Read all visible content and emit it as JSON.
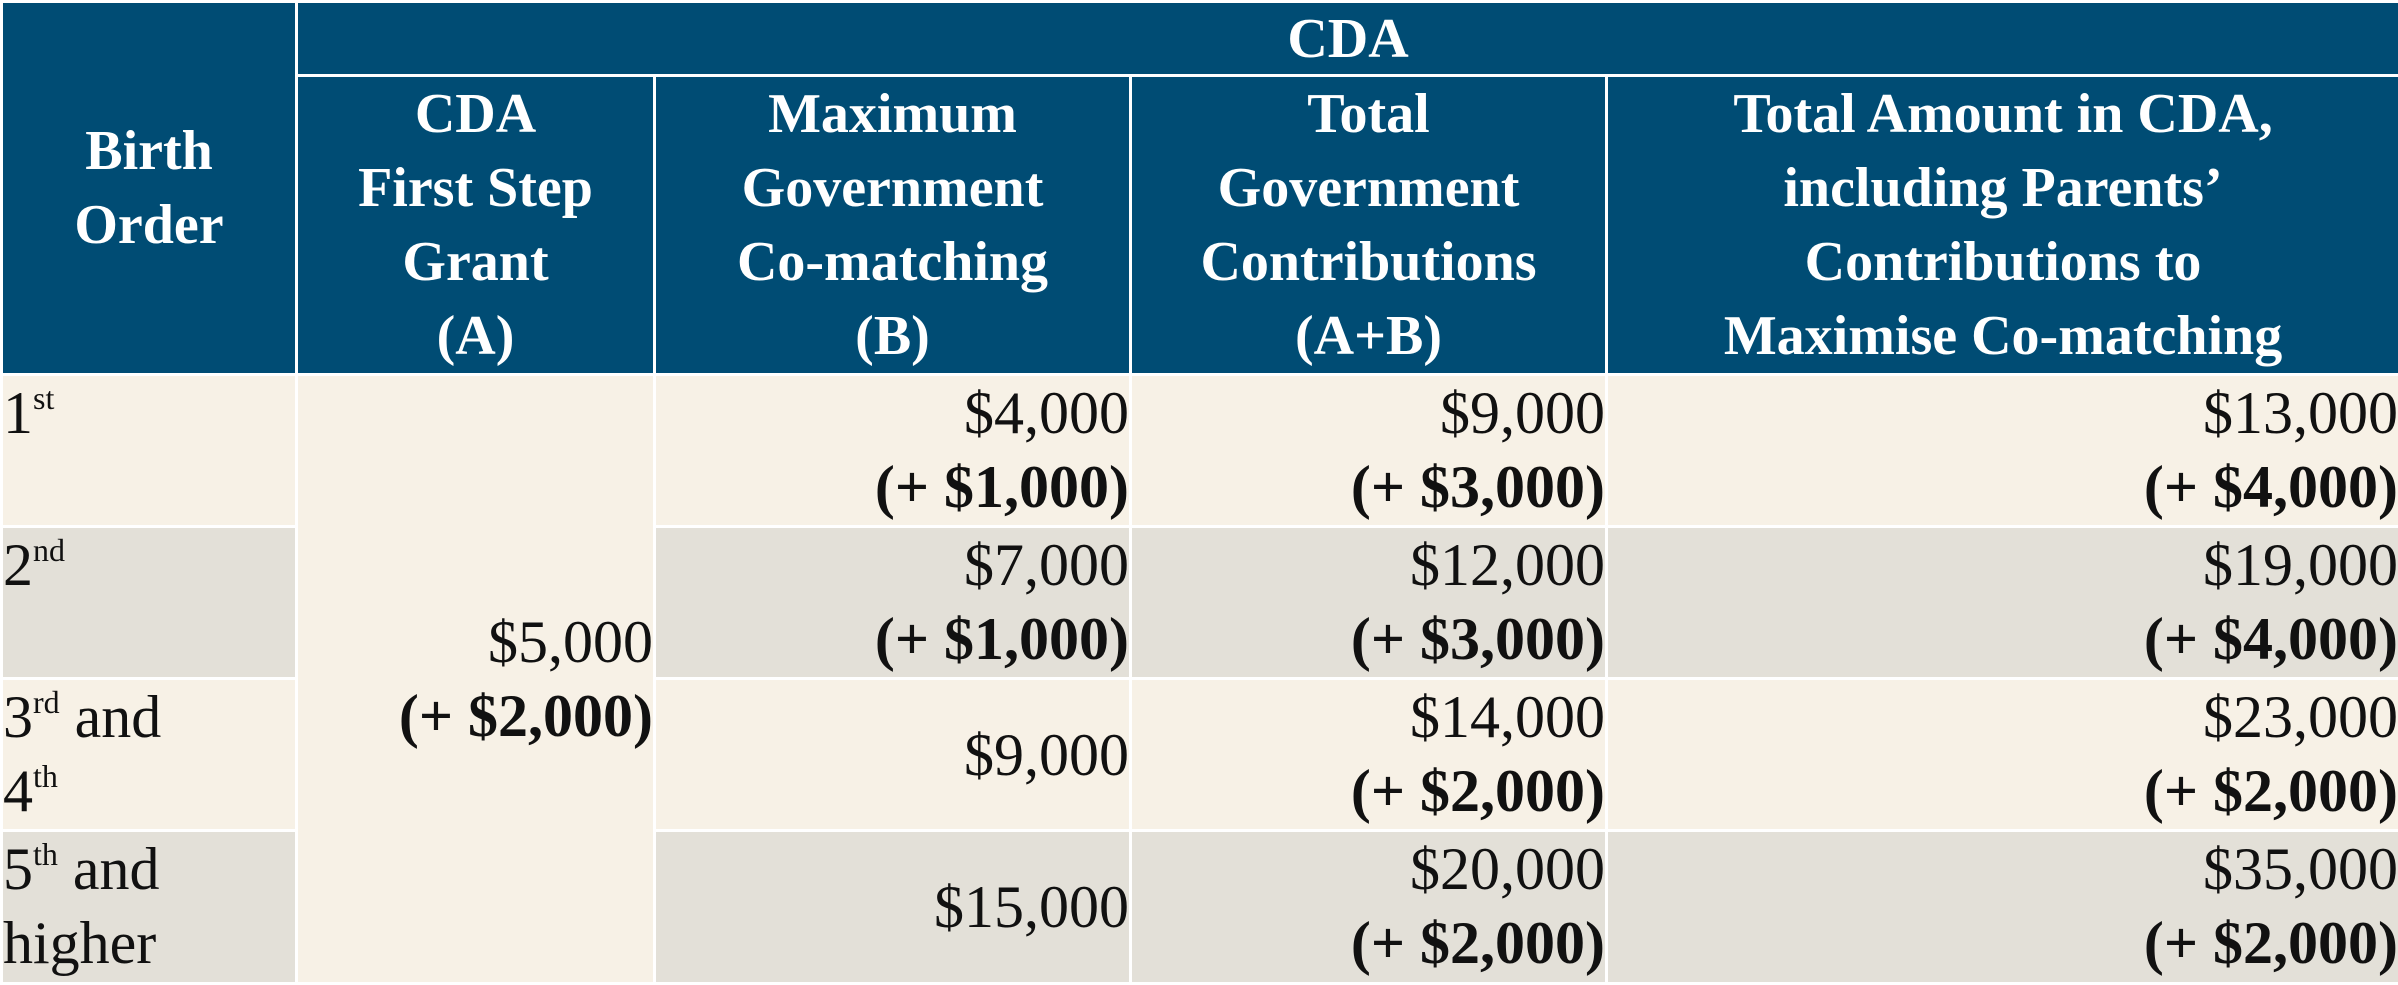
{
  "header": {
    "birth_order": [
      "Birth",
      "Order"
    ],
    "cda": "CDA",
    "col_a": [
      "CDA",
      "First Step",
      "Grant",
      "(A)"
    ],
    "col_b": [
      "Maximum",
      "Government",
      "Co-matching",
      "(B)"
    ],
    "col_ab": [
      "Total",
      "Government",
      "Contributions",
      "(A+B)"
    ],
    "col_total": [
      "Total Amount in CDA,",
      "including Parents’",
      "Contributions to",
      "Maximise Co-matching"
    ]
  },
  "grant": {
    "value": "$5,000",
    "increase": "(+ $2,000)"
  },
  "rows": [
    {
      "birth": {
        "n1": "1",
        "s1": "st",
        "rest1": "",
        "n2": "",
        "s2": "",
        "rest2": ""
      },
      "b": {
        "value": "$4,000",
        "increase": "(+ $1,000)"
      },
      "ab": {
        "value": "$9,000",
        "increase": "(+ $3,000)"
      },
      "total": {
        "value": "$13,000",
        "increase": "(+ $4,000)"
      }
    },
    {
      "birth": {
        "n1": "2",
        "s1": "nd",
        "rest1": "",
        "n2": "",
        "s2": "",
        "rest2": ""
      },
      "b": {
        "value": "$7,000",
        "increase": "(+ $1,000)"
      },
      "ab": {
        "value": "$12,000",
        "increase": "(+ $3,000)"
      },
      "total": {
        "value": "$19,000",
        "increase": "(+ $4,000)"
      }
    },
    {
      "birth": {
        "n1": "3",
        "s1": "rd",
        "rest1": " and",
        "n2": "4",
        "s2": "th",
        "rest2": ""
      },
      "b": {
        "value": "$9,000",
        "increase": ""
      },
      "ab": {
        "value": "$14,000",
        "increase": "(+ $2,000)"
      },
      "total": {
        "value": "$23,000",
        "increase": "(+ $2,000)"
      }
    },
    {
      "birth": {
        "n1": "5",
        "s1": "th",
        "rest1": " and",
        "n2": "higher",
        "s2": "",
        "rest2": ""
      },
      "b": {
        "value": "$15,000",
        "increase": ""
      },
      "ab": {
        "value": "$20,000",
        "increase": "(+ $2,000)"
      },
      "total": {
        "value": "$35,000",
        "increase": "(+ $2,000)"
      }
    }
  ]
}
